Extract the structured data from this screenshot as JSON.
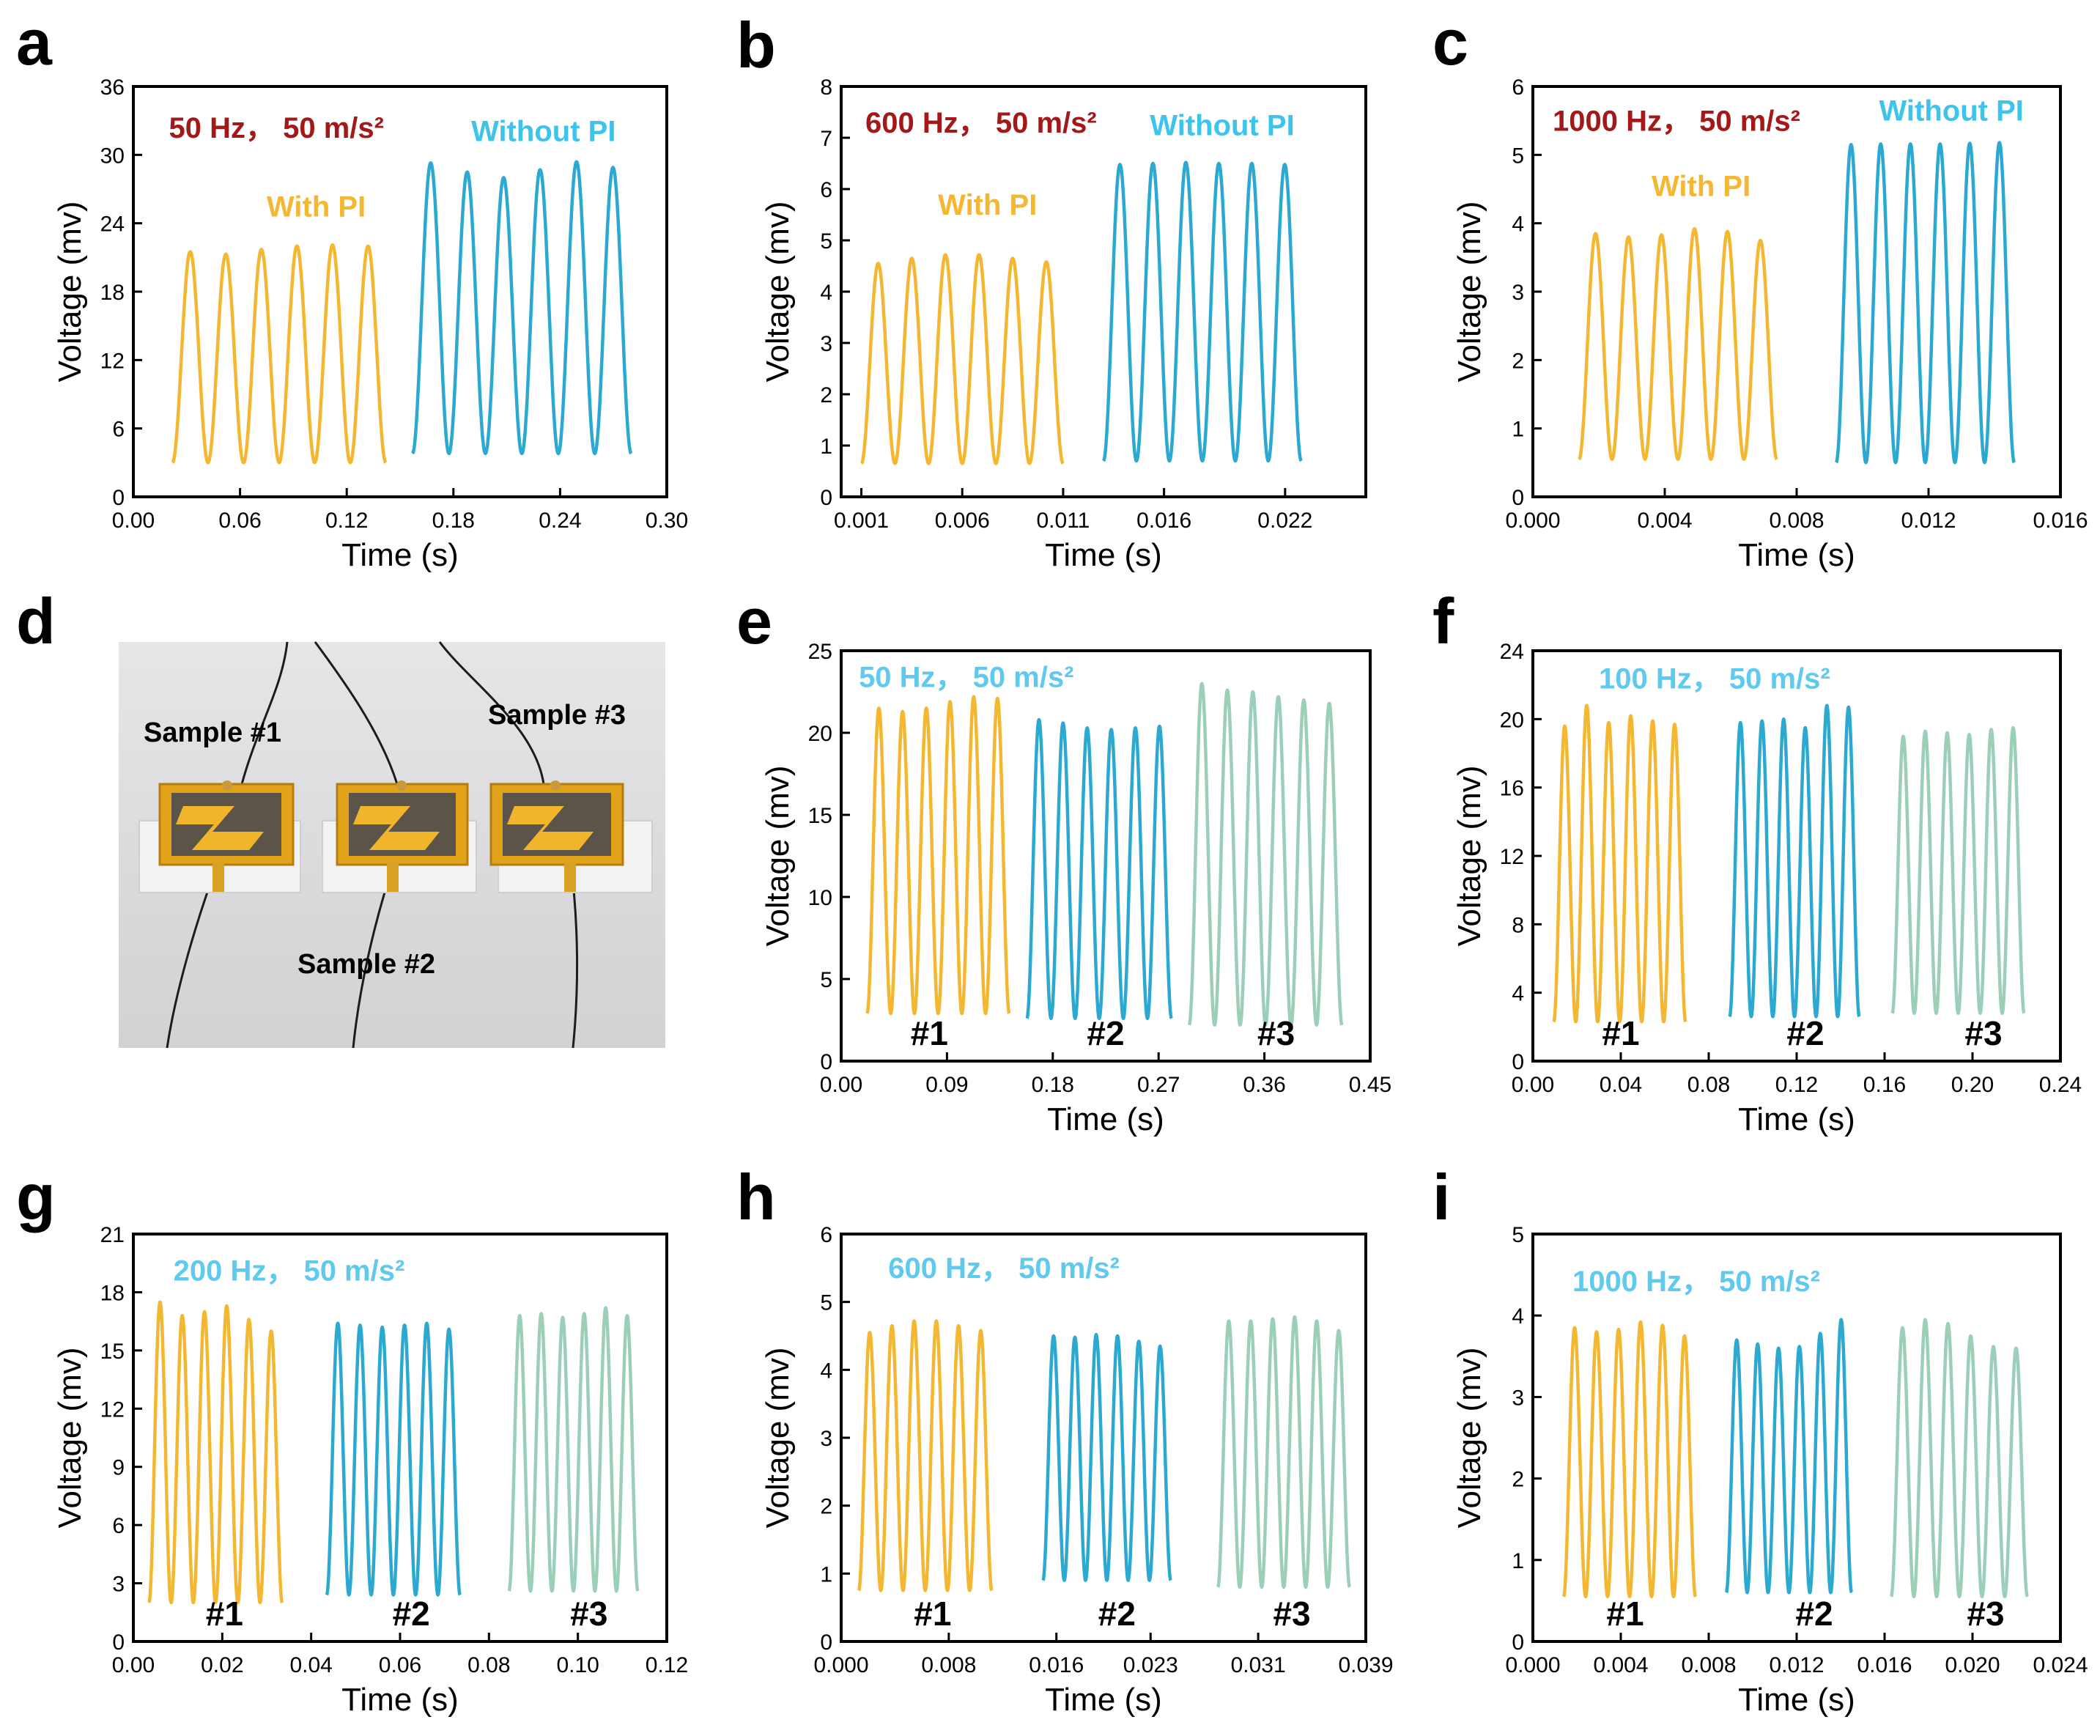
{
  "colors": {
    "yellow": "#F4B731",
    "blue": "#2BA9D0",
    "green": "#9CCFB8",
    "dark_red": "#A31919",
    "light_blue": "#3EC3EA",
    "light_blue2": "#5FC9EE"
  },
  "photo": {
    "letter": "d",
    "labels": [
      "Sample #1",
      "Sample #2",
      "Sample #3"
    ]
  },
  "chart_data": [
    {
      "type": "line",
      "letter": "a",
      "xlabel": "Time (s)",
      "ylabel": "Voltage (mv)",
      "xlim": [
        0,
        0.3
      ],
      "ylim": [
        0,
        36
      ],
      "xticks": [
        0,
        0.06,
        0.12,
        0.18,
        0.24,
        0.3
      ],
      "xtick_labels": [
        "0.00",
        "0.06",
        "0.12",
        "0.18",
        "0.24",
        "0.30"
      ],
      "yticks": [
        0,
        6,
        12,
        18,
        24,
        30,
        36
      ],
      "ytick_labels": [
        "0",
        "6",
        "12",
        "18",
        "24",
        "30",
        "36"
      ],
      "annotations": [
        {
          "text": "50 Hz，  50 m/s²",
          "color": "dark_red",
          "x": 0.02,
          "y": 31.5
        },
        {
          "text": "Without PI",
          "color": "light_blue",
          "x": 0.19,
          "y": 31.2
        },
        {
          "text": "With PI",
          "color": "yellow",
          "x": 0.075,
          "y": 24.6
        }
      ],
      "series": [
        {
          "name": "With PI",
          "color": "yellow",
          "t_start": 0.022,
          "t_end": 0.142,
          "cycles": 6,
          "min": 3.0,
          "peaks": [
            21.5,
            21.3,
            21.7,
            22.0,
            22.1,
            22.0
          ]
        },
        {
          "name": "Without PI",
          "color": "blue",
          "t_start": 0.157,
          "t_end": 0.28,
          "cycles": 6,
          "min": 3.8,
          "peaks": [
            29.3,
            28.5,
            28.0,
            28.7,
            29.4,
            28.9
          ]
        }
      ]
    },
    {
      "type": "line",
      "letter": "b",
      "xlabel": "Time (s)",
      "ylabel": "Voltage (mv)",
      "xlim": [
        0,
        0.026
      ],
      "ylim": [
        0,
        8
      ],
      "xticks": [
        0.001,
        0.006,
        0.011,
        0.016,
        0.022
      ],
      "xtick_labels": [
        "0.001",
        "0.006",
        "0.011",
        "0.016",
        "0.022"
      ],
      "yticks": [
        0,
        1,
        2,
        3,
        4,
        5,
        6,
        7,
        8
      ],
      "ytick_labels": [
        "0",
        "1",
        "2",
        "3",
        "4",
        "5",
        "6",
        "7",
        "8"
      ],
      "annotations": [
        {
          "text": "600 Hz，  50 m/s²",
          "color": "dark_red",
          "x": 0.0012,
          "y": 7.1
        },
        {
          "text": "Without PI",
          "color": "light_blue",
          "x": 0.0153,
          "y": 7.05
        },
        {
          "text": "With PI",
          "color": "yellow",
          "x": 0.0048,
          "y": 5.5
        }
      ],
      "series": [
        {
          "name": "With PI",
          "color": "yellow",
          "t_start": 0.001,
          "t_end": 0.011,
          "cycles": 6,
          "min": 0.65,
          "peaks": [
            4.55,
            4.65,
            4.72,
            4.72,
            4.65,
            4.58
          ]
        },
        {
          "name": "Without PI",
          "color": "blue",
          "t_start": 0.013,
          "t_end": 0.0228,
          "cycles": 6,
          "min": 0.7,
          "peaks": [
            6.48,
            6.5,
            6.52,
            6.5,
            6.5,
            6.48
          ]
        }
      ]
    },
    {
      "type": "line",
      "letter": "c",
      "xlabel": "Time (s)",
      "ylabel": "Voltage (mv)",
      "xlim": [
        0,
        0.016
      ],
      "ylim": [
        0,
        6
      ],
      "xticks": [
        0,
        0.004,
        0.008,
        0.012,
        0.016
      ],
      "xtick_labels": [
        "0.000",
        "0.004",
        "0.008",
        "0.012",
        "0.016"
      ],
      "yticks": [
        0,
        1,
        2,
        3,
        4,
        5,
        6
      ],
      "ytick_labels": [
        "0",
        "1",
        "2",
        "3",
        "4",
        "5",
        "6"
      ],
      "annotations": [
        {
          "text": "1000 Hz，  50 m/s²",
          "color": "dark_red",
          "x": 0.0006,
          "y": 5.35
        },
        {
          "text": "Without PI",
          "color": "light_blue",
          "x": 0.0105,
          "y": 5.5
        },
        {
          "text": "With PI",
          "color": "yellow",
          "x": 0.0036,
          "y": 4.4
        }
      ],
      "series": [
        {
          "name": "With PI",
          "color": "yellow",
          "t_start": 0.0014,
          "t_end": 0.0074,
          "cycles": 6,
          "min": 0.55,
          "peaks": [
            3.85,
            3.8,
            3.83,
            3.92,
            3.88,
            3.75
          ]
        },
        {
          "name": "Without PI",
          "color": "blue",
          "t_start": 0.0092,
          "t_end": 0.0146,
          "cycles": 6,
          "min": 0.5,
          "peaks": [
            5.15,
            5.16,
            5.16,
            5.16,
            5.17,
            5.18
          ]
        }
      ]
    },
    {
      "type": "line",
      "letter": "e",
      "xlabel": "Time (s)",
      "ylabel": "Voltage (mv)",
      "xlim": [
        0,
        0.45
      ],
      "ylim": [
        0,
        25
      ],
      "xticks": [
        0,
        0.09,
        0.18,
        0.27,
        0.36,
        0.45
      ],
      "xtick_labels": [
        "0.00",
        "0.09",
        "0.18",
        "0.27",
        "0.36",
        "0.45"
      ],
      "yticks": [
        0,
        5,
        10,
        15,
        20,
        25
      ],
      "ytick_labels": [
        "0",
        "5",
        "10",
        "15",
        "20",
        "25"
      ],
      "annotations": [
        {
          "text": "50 Hz，  50 m/s²",
          "color": "light_blue2",
          "x": 0.015,
          "y": 22.8
        }
      ],
      "samples": [
        {
          "text": "#1",
          "x": 0.075
        },
        {
          "text": "#2",
          "x": 0.225
        },
        {
          "text": "#3",
          "x": 0.37
        }
      ],
      "series": [
        {
          "name": "#1",
          "color": "yellow",
          "t_start": 0.022,
          "t_end": 0.143,
          "cycles": 6,
          "min": 2.9,
          "peaks": [
            21.5,
            21.3,
            21.5,
            21.9,
            22.2,
            22.1
          ]
        },
        {
          "name": "#2",
          "color": "blue",
          "t_start": 0.158,
          "t_end": 0.281,
          "cycles": 6,
          "min": 2.6,
          "peaks": [
            20.8,
            20.6,
            20.3,
            20.2,
            20.3,
            20.4
          ]
        },
        {
          "name": "#3",
          "color": "green",
          "t_start": 0.296,
          "t_end": 0.426,
          "cycles": 6,
          "min": 2.2,
          "peaks": [
            23.0,
            22.6,
            22.5,
            22.2,
            22.0,
            21.8
          ]
        }
      ]
    },
    {
      "type": "line",
      "letter": "f",
      "xlabel": "Time (s)",
      "ylabel": "Voltage (mv)",
      "xlim": [
        0,
        0.24
      ],
      "ylim": [
        0,
        24
      ],
      "xticks": [
        0,
        0.04,
        0.08,
        0.12,
        0.16,
        0.2,
        0.24
      ],
      "xtick_labels": [
        "0.00",
        "0.04",
        "0.08",
        "0.12",
        "0.16",
        "0.20",
        "0.24"
      ],
      "yticks": [
        0,
        4,
        8,
        12,
        16,
        20,
        24
      ],
      "ytick_labels": [
        "0",
        "4",
        "8",
        "12",
        "16",
        "20",
        "24"
      ],
      "annotations": [
        {
          "text": "100 Hz，  50 m/s²",
          "color": "light_blue2",
          "x": 0.03,
          "y": 21.8
        }
      ],
      "samples": [
        {
          "text": "#1",
          "x": 0.04
        },
        {
          "text": "#2",
          "x": 0.124
        },
        {
          "text": "#3",
          "x": 0.205
        }
      ],
      "series": [
        {
          "name": "#1",
          "color": "yellow",
          "t_start": 0.0095,
          "t_end": 0.0695,
          "cycles": 6,
          "min": 2.3,
          "peaks": [
            19.6,
            20.8,
            19.8,
            20.2,
            19.9,
            19.7
          ]
        },
        {
          "name": "#2",
          "color": "blue",
          "t_start": 0.0895,
          "t_end": 0.1485,
          "cycles": 6,
          "min": 2.6,
          "peaks": [
            19.8,
            19.9,
            20.0,
            19.5,
            20.8,
            20.7
          ]
        },
        {
          "name": "#3",
          "color": "green",
          "t_start": 0.1635,
          "t_end": 0.2235,
          "cycles": 6,
          "min": 2.8,
          "peaks": [
            19.0,
            19.3,
            19.2,
            19.1,
            19.4,
            19.5
          ]
        }
      ]
    },
    {
      "type": "line",
      "letter": "g",
      "xlabel": "Time (s)",
      "ylabel": "Voltage (mv)",
      "xlim": [
        0,
        0.12
      ],
      "ylim": [
        0,
        21
      ],
      "xticks": [
        0,
        0.02,
        0.04,
        0.06,
        0.08,
        0.1,
        0.12
      ],
      "xtick_labels": [
        "0.00",
        "0.02",
        "0.04",
        "0.06",
        "0.08",
        "0.10",
        "0.12"
      ],
      "yticks": [
        0,
        3,
        6,
        9,
        12,
        15,
        18,
        21
      ],
      "ytick_labels": [
        "0",
        "3",
        "6",
        "9",
        "12",
        "15",
        "18",
        "21"
      ],
      "annotations": [
        {
          "text": "200 Hz，  50 m/s²",
          "color": "light_blue2",
          "x": 0.009,
          "y": 18.6
        }
      ],
      "samples": [
        {
          "text": "#1",
          "x": 0.0205
        },
        {
          "text": "#2",
          "x": 0.0625
        },
        {
          "text": "#3",
          "x": 0.1025
        }
      ],
      "series": [
        {
          "name": "#1",
          "color": "yellow",
          "t_start": 0.0035,
          "t_end": 0.0335,
          "cycles": 6,
          "min": 2.0,
          "peaks": [
            17.5,
            16.8,
            17.0,
            17.3,
            16.6,
            16.0
          ]
        },
        {
          "name": "#2",
          "color": "blue",
          "t_start": 0.0435,
          "t_end": 0.0735,
          "cycles": 6,
          "min": 2.4,
          "peaks": [
            16.4,
            16.3,
            16.2,
            16.3,
            16.4,
            16.1
          ]
        },
        {
          "name": "#3",
          "color": "green",
          "t_start": 0.0845,
          "t_end": 0.1135,
          "cycles": 6,
          "min": 2.6,
          "peaks": [
            16.8,
            16.9,
            16.7,
            16.9,
            17.2,
            16.8
          ]
        }
      ]
    },
    {
      "type": "line",
      "letter": "h",
      "xlabel": "Time (s)",
      "ylabel": "Voltage (mv)",
      "xlim": [
        0,
        0.039
      ],
      "ylim": [
        0,
        6
      ],
      "xticks": [
        0,
        0.008,
        0.016,
        0.023,
        0.031,
        0.039
      ],
      "xtick_labels": [
        "0.000",
        "0.008",
        "0.016",
        "0.023",
        "0.031",
        "0.039"
      ],
      "yticks": [
        0,
        1,
        2,
        3,
        4,
        5,
        6
      ],
      "ytick_labels": [
        "0",
        "1",
        "2",
        "3",
        "4",
        "5",
        "6"
      ],
      "annotations": [
        {
          "text": "600 Hz，  50 m/s²",
          "color": "light_blue2",
          "x": 0.0035,
          "y": 5.35
        }
      ],
      "samples": [
        {
          "text": "#1",
          "x": 0.0068
        },
        {
          "text": "#2",
          "x": 0.0205
        },
        {
          "text": "#3",
          "x": 0.0335
        }
      ],
      "series": [
        {
          "name": "#1",
          "color": "yellow",
          "t_start": 0.0013,
          "t_end": 0.0112,
          "cycles": 6,
          "min": 0.75,
          "peaks": [
            4.55,
            4.65,
            4.72,
            4.72,
            4.65,
            4.58
          ]
        },
        {
          "name": "#2",
          "color": "blue",
          "t_start": 0.015,
          "t_end": 0.0245,
          "cycles": 6,
          "min": 0.9,
          "peaks": [
            4.5,
            4.48,
            4.52,
            4.5,
            4.42,
            4.35
          ]
        },
        {
          "name": "#3",
          "color": "green",
          "t_start": 0.028,
          "t_end": 0.0378,
          "cycles": 6,
          "min": 0.8,
          "peaks": [
            4.72,
            4.72,
            4.75,
            4.78,
            4.72,
            4.58
          ]
        }
      ]
    },
    {
      "type": "line",
      "letter": "i",
      "xlabel": "Time (s)",
      "ylabel": "Voltage (mv)",
      "xlim": [
        0,
        0.024
      ],
      "ylim": [
        0,
        5
      ],
      "xticks": [
        0,
        0.004,
        0.008,
        0.012,
        0.016,
        0.02,
        0.024
      ],
      "xtick_labels": [
        "0.000",
        "0.004",
        "0.008",
        "0.012",
        "0.016",
        "0.020",
        "0.024"
      ],
      "yticks": [
        0,
        1,
        2,
        3,
        4,
        5
      ],
      "ytick_labels": [
        "0",
        "1",
        "2",
        "3",
        "4",
        "5"
      ],
      "annotations": [
        {
          "text": "1000 Hz，  50 m/s²",
          "color": "light_blue2",
          "x": 0.0018,
          "y": 4.3
        }
      ],
      "samples": [
        {
          "text": "#1",
          "x": 0.0042
        },
        {
          "text": "#2",
          "x": 0.0128
        },
        {
          "text": "#3",
          "x": 0.0206
        }
      ],
      "series": [
        {
          "name": "#1",
          "color": "yellow",
          "t_start": 0.0014,
          "t_end": 0.0074,
          "cycles": 6,
          "min": 0.55,
          "peaks": [
            3.85,
            3.8,
            3.83,
            3.92,
            3.88,
            3.75
          ]
        },
        {
          "name": "#2",
          "color": "blue",
          "t_start": 0.0088,
          "t_end": 0.0145,
          "cycles": 6,
          "min": 0.6,
          "peaks": [
            3.7,
            3.65,
            3.6,
            3.62,
            3.78,
            3.95
          ]
        },
        {
          "name": "#3",
          "color": "green",
          "t_start": 0.0163,
          "t_end": 0.0225,
          "cycles": 6,
          "min": 0.55,
          "peaks": [
            3.85,
            3.95,
            3.9,
            3.75,
            3.62,
            3.6
          ]
        }
      ]
    }
  ]
}
